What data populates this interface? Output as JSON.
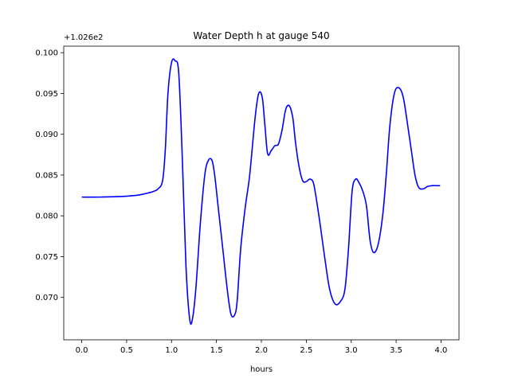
{
  "chart_data": {
    "type": "line",
    "title": "Water Depth h at gauge 540",
    "xlabel": "hours",
    "ylabel": "",
    "offset_label": "+1.026e2",
    "xlim": [
      -0.2,
      4.2
    ],
    "ylim": [
      0.0648,
      0.1008
    ],
    "x_ticks": [
      0.0,
      0.5,
      1.0,
      1.5,
      2.0,
      2.5,
      3.0,
      3.5,
      4.0
    ],
    "x_tick_labels": [
      "0.0",
      "0.5",
      "1.0",
      "1.5",
      "2.0",
      "2.5",
      "3.0",
      "3.5",
      "4.0"
    ],
    "y_ticks": [
      0.07,
      0.075,
      0.08,
      0.085,
      0.09,
      0.095,
      0.1
    ],
    "y_tick_labels": [
      "0.070",
      "0.075",
      "0.080",
      "0.085",
      "0.090",
      "0.095",
      "0.100"
    ],
    "grid": false,
    "series": [
      {
        "name": "",
        "color": "#0000ff",
        "x": [
          0.0,
          0.2,
          0.4,
          0.6,
          0.7,
          0.8,
          0.85,
          0.9,
          0.93,
          0.96,
          1.0,
          1.04,
          1.08,
          1.12,
          1.16,
          1.2,
          1.23,
          1.27,
          1.32,
          1.37,
          1.41,
          1.45,
          1.48,
          1.52,
          1.57,
          1.62,
          1.66,
          1.7,
          1.73,
          1.77,
          1.82,
          1.87,
          1.93,
          1.97,
          2.01,
          2.04,
          2.07,
          2.11,
          2.15,
          2.19,
          2.23,
          2.27,
          2.31,
          2.35,
          2.38,
          2.42,
          2.46,
          2.5,
          2.54,
          2.58,
          2.62,
          2.66,
          2.71,
          2.76,
          2.82,
          2.88,
          2.93,
          2.97,
          3.01,
          3.05,
          3.09,
          3.13,
          3.17,
          3.21,
          3.25,
          3.3,
          3.35,
          3.39,
          3.43,
          3.48,
          3.53,
          3.58,
          3.63,
          3.67,
          3.71,
          3.75,
          3.8,
          3.85,
          3.9,
          3.95,
          3.99
        ],
        "values": [
          0.0823,
          0.0823,
          0.08235,
          0.0825,
          0.0827,
          0.083,
          0.0833,
          0.0843,
          0.088,
          0.095,
          0.0988,
          0.099,
          0.0975,
          0.087,
          0.074,
          0.0675,
          0.0672,
          0.071,
          0.079,
          0.085,
          0.0868,
          0.0868,
          0.085,
          0.081,
          0.076,
          0.071,
          0.068,
          0.0678,
          0.0695,
          0.076,
          0.081,
          0.085,
          0.092,
          0.095,
          0.0945,
          0.091,
          0.0876,
          0.088,
          0.0886,
          0.0888,
          0.0905,
          0.093,
          0.0935,
          0.092,
          0.089,
          0.086,
          0.0843,
          0.0842,
          0.0845,
          0.084,
          0.0815,
          0.0785,
          0.0745,
          0.071,
          0.0692,
          0.0695,
          0.071,
          0.076,
          0.083,
          0.0845,
          0.084,
          0.083,
          0.0812,
          0.077,
          0.0755,
          0.0765,
          0.08,
          0.085,
          0.091,
          0.095,
          0.0957,
          0.0945,
          0.091,
          0.088,
          0.085,
          0.0835,
          0.0833,
          0.0836,
          0.0837,
          0.0837,
          0.0837
        ]
      }
    ]
  }
}
